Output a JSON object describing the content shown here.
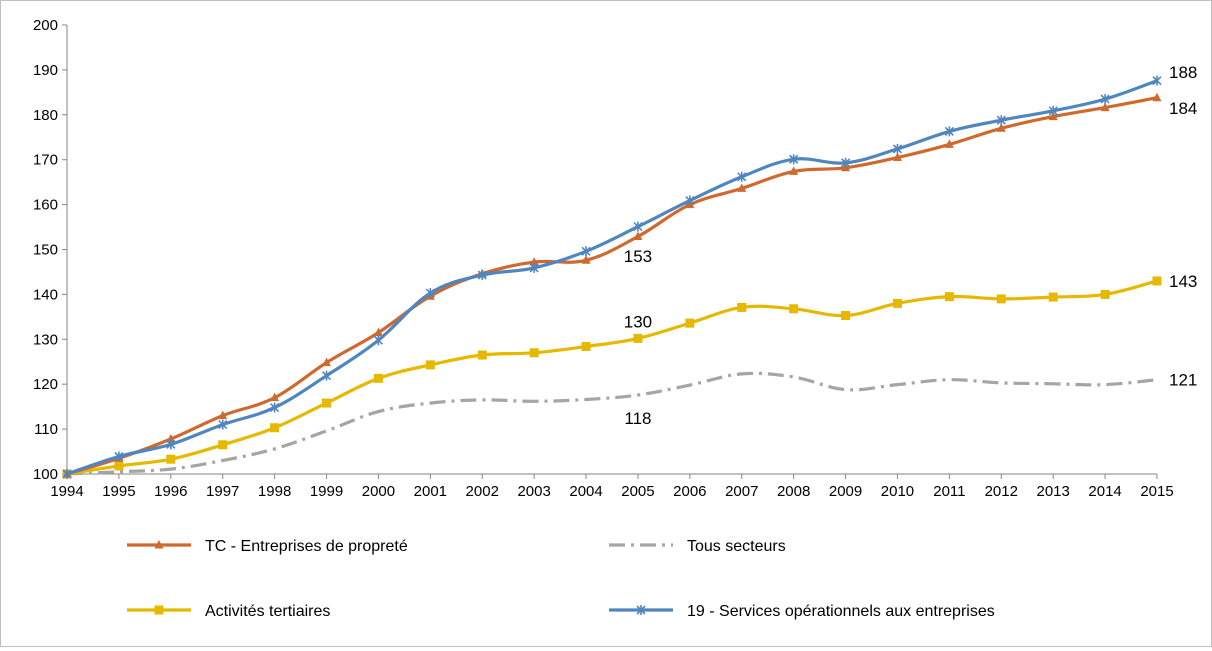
{
  "chart_data": {
    "type": "line",
    "x": [
      "1994",
      "1995",
      "1996",
      "1997",
      "1998",
      "1999",
      "2000",
      "2001",
      "2002",
      "2003",
      "2004",
      "2005",
      "2006",
      "2007",
      "2008",
      "2009",
      "2010",
      "2011",
      "2012",
      "2013",
      "2014",
      "2015"
    ],
    "ylim": [
      100,
      200
    ],
    "yticks": [
      "100",
      "110",
      "120",
      "130",
      "140",
      "150",
      "160",
      "170",
      "180",
      "190",
      "200"
    ],
    "grid": false,
    "legend_position": "bottom",
    "series": [
      {
        "name": "TC - Entreprises de propreté",
        "color": "#d0692d",
        "marker": "triangle",
        "dash": "solid",
        "values": [
          100,
          103.5,
          107.8,
          113,
          117,
          124.8,
          131.5,
          139.6,
          144.6,
          147.2,
          147.6,
          152.9,
          160,
          163.6,
          167.4,
          168.2,
          170.5,
          173.4,
          177,
          179.6,
          181.6,
          183.8
        ]
      },
      {
        "name": "Tous secteurs",
        "color": "#a5a5a5",
        "marker": "none",
        "dash": "dashdot",
        "values": [
          100,
          100.5,
          101.1,
          103,
          105.6,
          109.6,
          113.9,
          115.8,
          116.5,
          116.2,
          116.6,
          117.6,
          119.8,
          122.3,
          121.6,
          118.8,
          119.9,
          121,
          120.3,
          120.1,
          119.9,
          121
        ]
      },
      {
        "name": "Activités tertiaires",
        "color": "#e6b800",
        "marker": "square",
        "dash": "solid",
        "values": [
          100,
          101.8,
          103.3,
          106.5,
          110.3,
          115.8,
          121.3,
          124.3,
          126.5,
          127,
          128.4,
          130.2,
          133.6,
          137.1,
          136.8,
          135.3,
          138,
          139.5,
          139,
          139.4,
          140,
          143
        ]
      },
      {
        "name": "19 - Services opérationnels aux entreprises",
        "color": "#4f86c0",
        "marker": "star",
        "dash": "solid",
        "values": [
          100,
          103.9,
          106.6,
          111,
          114.8,
          121.9,
          129.8,
          140.3,
          144.3,
          145.9,
          149.6,
          155.1,
          160.9,
          166.2,
          170.1,
          169.3,
          172.4,
          176.3,
          178.8,
          180.9,
          183.5,
          187.6
        ]
      }
    ],
    "annotations": [
      {
        "text": "188",
        "x": "2015",
        "y": 189.5
      },
      {
        "text": "184",
        "x": "2015",
        "y": 181.5
      },
      {
        "text": "143",
        "x": "2015",
        "y": 143
      },
      {
        "text": "121",
        "x": "2015",
        "y": 121
      },
      {
        "text": "153",
        "x": "2005",
        "y": 148.5
      },
      {
        "text": "130",
        "x": "2005",
        "y": 134
      },
      {
        "text": "118",
        "x": "2005",
        "y": 112.5
      }
    ]
  }
}
